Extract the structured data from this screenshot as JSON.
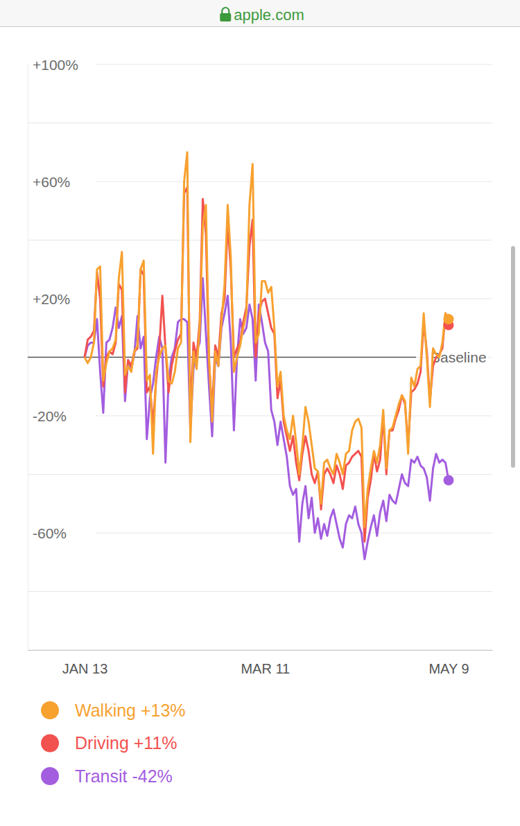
{
  "browser": {
    "address": "apple.com"
  },
  "chart_data": {
    "type": "line",
    "categories": [
      "JAN 13",
      null,
      null,
      null,
      null,
      null,
      null,
      null,
      null,
      null,
      null,
      null,
      null,
      null,
      null,
      null,
      null,
      null,
      null,
      null,
      null,
      null,
      null,
      null,
      null,
      null,
      null,
      null,
      null,
      null,
      null,
      null,
      null,
      null,
      null,
      null,
      null,
      null,
      null,
      null,
      null,
      null,
      null,
      null,
      null,
      null,
      null,
      null,
      null,
      null,
      null,
      null,
      null,
      null,
      null,
      null,
      null,
      null,
      "MAR 11",
      null,
      null,
      null,
      null,
      null,
      null,
      null,
      null,
      null,
      null,
      null,
      null,
      null,
      null,
      null,
      null,
      null,
      null,
      null,
      null,
      null,
      null,
      null,
      null,
      null,
      null,
      null,
      null,
      null,
      null,
      null,
      null,
      null,
      null,
      null,
      null,
      null,
      null,
      null,
      null,
      null,
      null,
      null,
      null,
      null,
      null,
      null,
      null,
      null,
      null,
      null,
      null,
      null,
      null,
      null,
      null,
      null,
      null,
      "MAY 9"
    ],
    "series": [
      {
        "name": "Walking +13%",
        "color": "#f7a12f",
        "values": [
          0,
          -2,
          0,
          5,
          30,
          31,
          -8,
          -2,
          2,
          3,
          6,
          27,
          36,
          -6,
          -3,
          -5,
          2,
          4,
          30,
          33,
          -8,
          -6,
          -33,
          -5,
          0,
          3,
          4,
          -8,
          -9,
          -5,
          3,
          5,
          60,
          70,
          -29,
          2,
          -4,
          10,
          45,
          52,
          0,
          -22,
          2,
          -3,
          12,
          25,
          52,
          34,
          -5,
          0,
          4,
          10,
          15,
          52,
          66,
          5,
          8,
          26,
          26,
          22,
          24,
          10,
          -10,
          -5,
          -20,
          -25,
          -28,
          -20,
          -29,
          -40,
          -30,
          -17,
          -22,
          -30,
          -38,
          -39,
          -50,
          -36,
          -35,
          -38,
          -40,
          -33,
          -36,
          -40,
          -33,
          -32,
          -25,
          -22,
          -21,
          -24,
          -58,
          -45,
          -38,
          -32,
          -36,
          -30,
          -18,
          -38,
          -25,
          -24,
          -20,
          -16,
          -13,
          -15,
          -33,
          -7,
          -10,
          -4,
          -3,
          15,
          0,
          -17,
          3,
          1,
          0,
          5,
          15,
          13
        ]
      },
      {
        "name": "Driving +11%",
        "color": "#f2524f",
        "values": [
          0,
          6,
          7,
          9,
          29,
          20,
          -10,
          0,
          2,
          1,
          5,
          25,
          23,
          -12,
          -1,
          -3,
          2,
          3,
          30,
          28,
          -12,
          -10,
          -23,
          -8,
          3,
          21,
          3,
          -12,
          -3,
          2,
          6,
          8,
          56,
          58,
          -20,
          5,
          0,
          12,
          54,
          42,
          -2,
          -18,
          4,
          0,
          15,
          20,
          46,
          30,
          0,
          3,
          5,
          12,
          17,
          38,
          47,
          0,
          15,
          19,
          20,
          15,
          10,
          8,
          -14,
          -8,
          -22,
          -27,
          -32,
          -27,
          -36,
          -42,
          -33,
          -27,
          -32,
          -40,
          -43,
          -39,
          -52,
          -40,
          -38,
          -40,
          -43,
          -37,
          -40,
          -45,
          -37,
          -36,
          -34,
          -33,
          -32,
          -34,
          -63,
          -48,
          -42,
          -33,
          -39,
          -35,
          -20,
          -40,
          -25,
          -25,
          -21,
          -18,
          -13,
          -16,
          -30,
          -12,
          -11,
          -9,
          -5,
          12,
          2,
          -15,
          -3,
          0,
          1,
          3,
          15,
          11
        ]
      },
      {
        "name": "Transit -42%",
        "color": "#a35ddf",
        "values": [
          0,
          4,
          5,
          5,
          13,
          -5,
          -19,
          5,
          6,
          10,
          17,
          10,
          14,
          -15,
          -1,
          -4,
          1,
          14,
          3,
          7,
          -28,
          -14,
          -9,
          0,
          7,
          3,
          -36,
          -8,
          0,
          3,
          12,
          13,
          13,
          12,
          -25,
          -4,
          2,
          5,
          27,
          8,
          -10,
          -27,
          0,
          -3,
          10,
          15,
          21,
          5,
          -25,
          0,
          13,
          8,
          10,
          18,
          13,
          -8,
          18,
          12,
          5,
          2,
          -18,
          -22,
          -30,
          -22,
          -28,
          -34,
          -44,
          -47,
          -45,
          -63,
          -50,
          -44,
          -55,
          -48,
          -60,
          -55,
          -62,
          -57,
          -61,
          -55,
          -52,
          -57,
          -62,
          -65,
          -57,
          -54,
          -55,
          -51,
          -57,
          -60,
          -69,
          -63,
          -58,
          -54,
          -61,
          -53,
          -49,
          -56,
          -47,
          -49,
          -50,
          -45,
          -40,
          -43,
          -44,
          -35,
          -36,
          -34,
          -37,
          -38,
          -41,
          -49,
          -38,
          -33,
          -36,
          -35,
          -36,
          -42
        ]
      }
    ],
    "ylim": [
      -100,
      100
    ],
    "yticks": [
      {
        "value": 100,
        "label": "+100%"
      },
      {
        "value": 80,
        "label": null
      },
      {
        "value": 60,
        "label": "+60%"
      },
      {
        "value": 40,
        "label": null
      },
      {
        "value": 20,
        "label": "+20%"
      },
      {
        "value": 0,
        "label": null
      },
      {
        "value": -20,
        "label": "-20%"
      },
      {
        "value": -40,
        "label": null
      },
      {
        "value": -60,
        "label": "-60%"
      },
      {
        "value": -80,
        "label": null
      },
      {
        "value": -100,
        "label": null
      }
    ],
    "annotations": [
      {
        "text": "Baseline",
        "y": 0
      }
    ],
    "grid": true,
    "legend": "bottom"
  }
}
